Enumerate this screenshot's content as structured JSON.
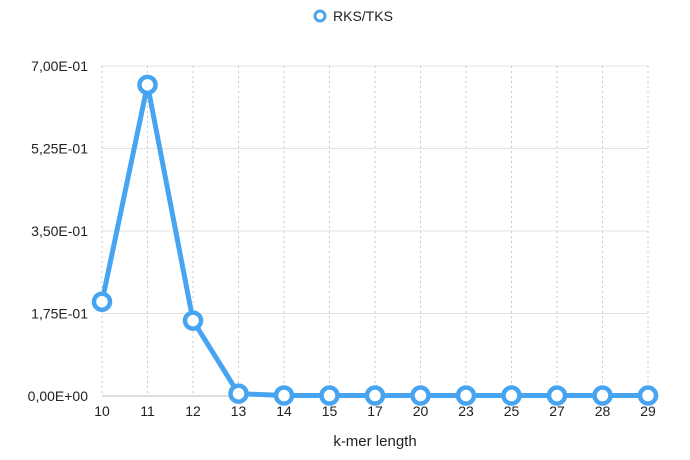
{
  "chart_data": {
    "type": "line",
    "title": "",
    "xlabel": "k-mer length",
    "ylabel": "",
    "categories": [
      "10",
      "11",
      "12",
      "13",
      "14",
      "15",
      "17",
      "20",
      "23",
      "25",
      "27",
      "28",
      "29"
    ],
    "series": [
      {
        "name": "RKS/TKS",
        "values": [
          0.2,
          0.66,
          0.16,
          0.005,
          0.001,
          0.001,
          0.001,
          0.001,
          0.001,
          0.001,
          0.001,
          0.001,
          0.001
        ],
        "color": "#47a4f0"
      }
    ],
    "ylim": [
      0,
      0.7
    ],
    "y_ticks": [
      "0,00E+00",
      "1,75E-01",
      "3,50E-01",
      "5,25E-01",
      "7,00E-01"
    ],
    "grid": true,
    "legend": "top-center"
  }
}
